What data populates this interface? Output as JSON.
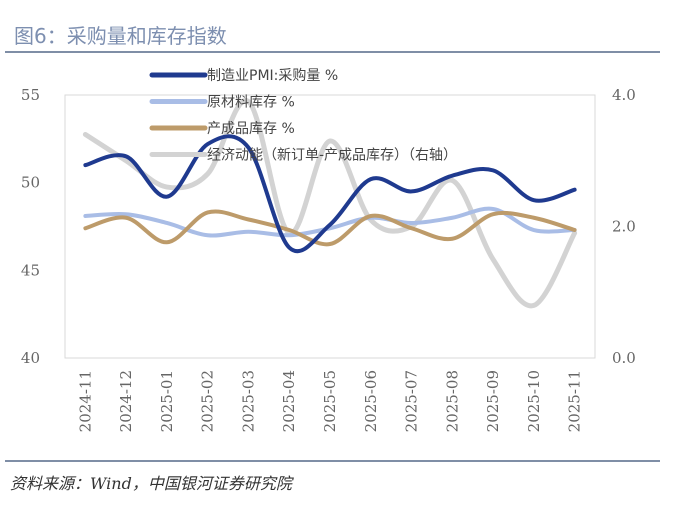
{
  "title": "图6：采购量和库存指数",
  "source": "资料来源：Wind，中国银河证券研究院",
  "chart_data": {
    "type": "line",
    "title": "",
    "categories": [
      "2024-11",
      "2024-12",
      "2025-01",
      "2025-02",
      "2025-03",
      "2025-04",
      "2025-05",
      "2025-06",
      "2025-07",
      "2025-08",
      "2025-09",
      "2025-10",
      "2025-11"
    ],
    "y_left": {
      "range": [
        40,
        55
      ],
      "ticks": [
        "40",
        "45",
        "50",
        "55"
      ]
    },
    "y_right": {
      "range": [
        0,
        4
      ],
      "ticks": [
        "0.0",
        "2.0",
        "4.0"
      ]
    },
    "legend_position": "top-left",
    "grid": false,
    "series": [
      {
        "name": "制造业PMI:采购量 %",
        "axis": "left",
        "color": "#1f3a8f",
        "values": [
          51.0,
          51.5,
          49.2,
          52.2,
          52.0,
          46.3,
          47.6,
          50.2,
          49.5,
          50.4,
          50.7,
          49.0,
          49.6
        ]
      },
      {
        "name": "原材料库存 %",
        "axis": "left",
        "color": "#a9bde6",
        "values": [
          48.1,
          48.2,
          47.7,
          47.0,
          47.2,
          47.0,
          47.4,
          48.0,
          47.7,
          48.0,
          48.5,
          47.3,
          47.3
        ]
      },
      {
        "name": "产成品库存 %",
        "axis": "left",
        "color": "#bd9b6a",
        "values": [
          47.4,
          48.0,
          46.6,
          48.3,
          47.9,
          47.3,
          46.5,
          48.1,
          47.4,
          46.8,
          48.2,
          48.0,
          47.3
        ]
      },
      {
        "name": "经济动能（新订单-产成品库存）（右轴）",
        "axis": "right",
        "color": "#d3d3d3",
        "values": [
          3.4,
          3.0,
          2.6,
          2.8,
          3.9,
          1.9,
          3.3,
          2.1,
          2.0,
          2.7,
          1.5,
          0.8,
          1.9
        ]
      }
    ]
  }
}
